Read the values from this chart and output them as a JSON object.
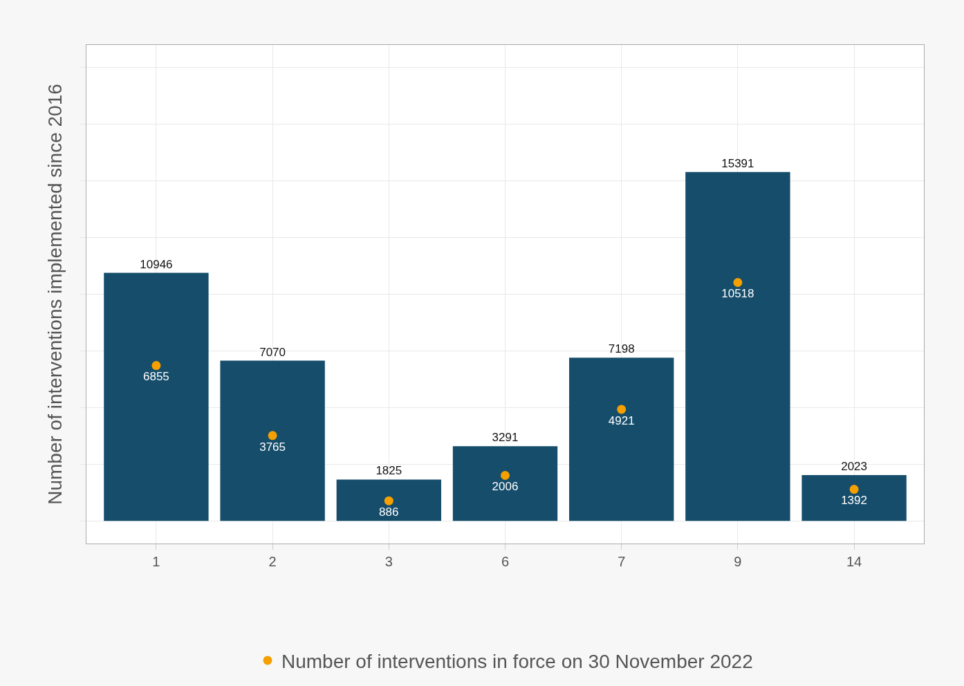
{
  "chart_data": {
    "type": "bar",
    "ylabel": "Number of interventions implemented since 2016",
    "categories": [
      "1",
      "2",
      "3",
      "6",
      "7",
      "9",
      "14"
    ],
    "series": [
      {
        "color": "#154d6b",
        "values": [
          10946,
          7070,
          1825,
          3291,
          7198,
          15391,
          2023
        ]
      },
      {
        "type": "scatter",
        "name": "Number of interventions in force on 30 November 2022",
        "color": "#f59f00",
        "values": [
          6855,
          3765,
          886,
          2006,
          4921,
          10518,
          1392
        ]
      }
    ],
    "data_labels": true,
    "marker": "circle",
    "grid": true,
    "legend": "bottom",
    "tick_labels": "x",
    "ylim": [
      -1000,
      21000
    ],
    "yticks": [
      {
        "value": 0,
        "label": null
      },
      {
        "value": 2500,
        "label": null
      },
      {
        "value": 5000,
        "label": null
      },
      {
        "value": 7500,
        "label": null
      },
      {
        "value": 10000,
        "label": null
      },
      {
        "value": 12500,
        "label": null
      },
      {
        "value": 15000,
        "label": null
      },
      {
        "value": 17500,
        "label": null
      },
      {
        "value": 20000,
        "label": null
      }
    ]
  }
}
